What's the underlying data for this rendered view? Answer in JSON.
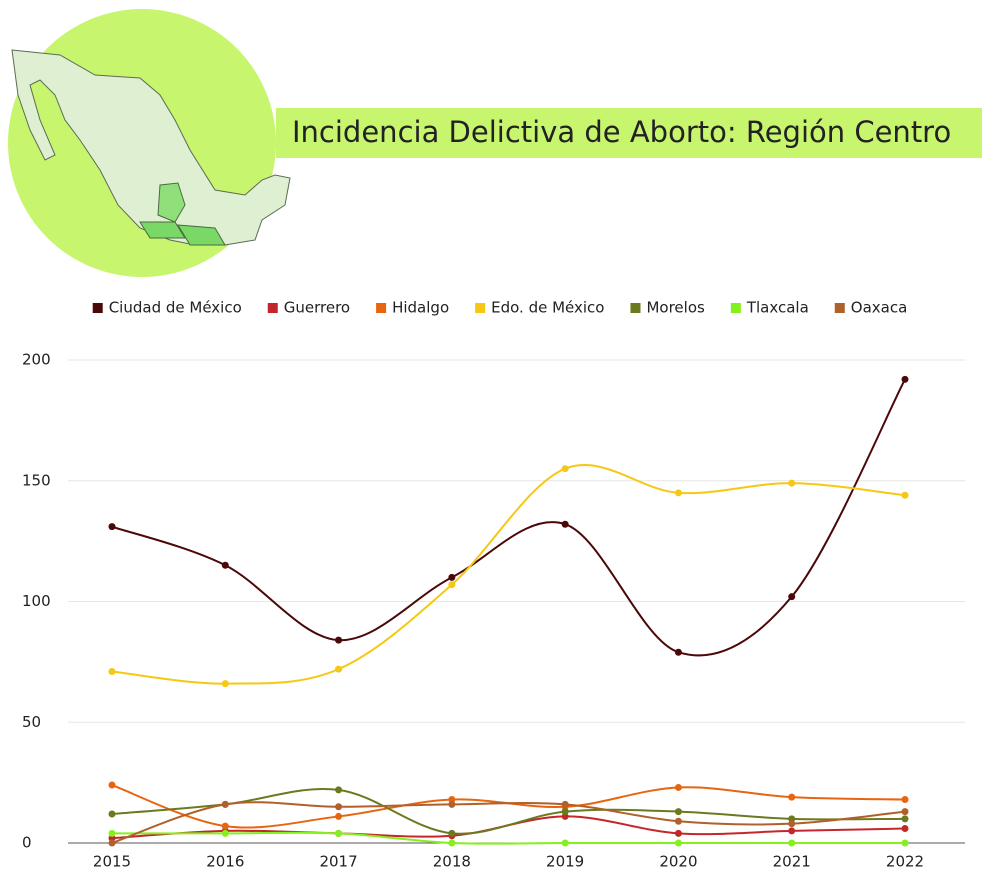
{
  "chart_data": {
    "type": "line",
    "title": "Incidencia Delictiva de Aborto: Región Centro",
    "categories": [
      "2015",
      "2016",
      "2017",
      "2018",
      "2019",
      "2020",
      "2021",
      "2022"
    ],
    "series": [
      {
        "name": "Ciudad de México",
        "color": "#4a0808",
        "values": [
          131,
          115,
          84,
          110,
          132,
          79,
          102,
          192
        ]
      },
      {
        "name": "Guerrero",
        "color": "#c4272a",
        "values": [
          2,
          5,
          4,
          3,
          11,
          4,
          5,
          6
        ]
      },
      {
        "name": "Hidalgo",
        "color": "#e8650f",
        "values": [
          24,
          7,
          11,
          18,
          15,
          23,
          19,
          18
        ]
      },
      {
        "name": "Edo. de México",
        "color": "#f5c814",
        "values": [
          71,
          66,
          72,
          107,
          155,
          145,
          149,
          144
        ]
      },
      {
        "name": "Morelos",
        "color": "#6b7a1f",
        "values": [
          12,
          16,
          22,
          4,
          13,
          13,
          10,
          10
        ]
      },
      {
        "name": "Tlaxcala",
        "color": "#84f01c",
        "values": [
          4,
          4,
          4,
          0,
          0,
          0,
          0,
          0
        ]
      },
      {
        "name": "Oaxaca",
        "color": "#b0602a",
        "values": [
          0,
          16,
          15,
          16,
          16,
          9,
          8,
          13
        ]
      }
    ],
    "ylim": [
      0,
      200
    ],
    "yticks": [
      0,
      50,
      100,
      150,
      200
    ],
    "grid": true
  }
}
